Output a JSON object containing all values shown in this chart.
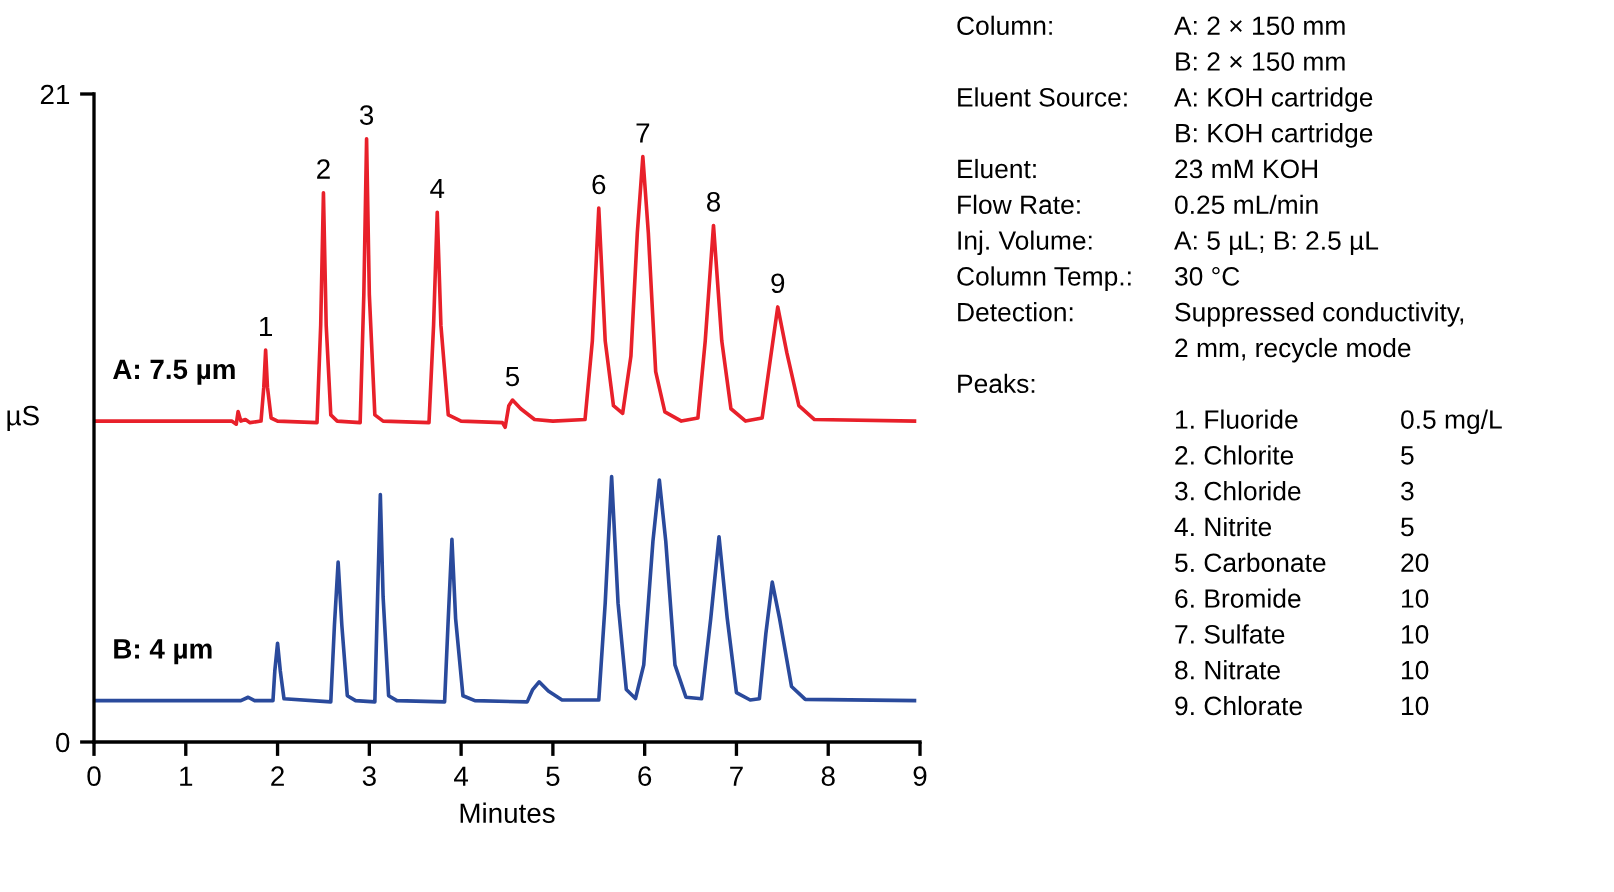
{
  "chart_data": {
    "type": "line",
    "xlabel": "Minutes",
    "ylabel": "µS",
    "xlim": [
      0,
      9
    ],
    "xticks": [
      0,
      1,
      2,
      3,
      4,
      5,
      6,
      7,
      8,
      9
    ],
    "ylim": [
      0,
      21
    ],
    "yticks": [
      0,
      21
    ],
    "grid": false,
    "legend": false,
    "marker": "none",
    "line_style": "solid",
    "series": [
      {
        "name": "A: 7.5 µm",
        "color": "#e8202a",
        "x": [
          0.0,
          1.5,
          1.55,
          1.57,
          1.6,
          1.65,
          1.7,
          1.82,
          1.85,
          1.87,
          1.89,
          1.93,
          2.0,
          2.43,
          2.47,
          2.5,
          2.53,
          2.58,
          2.65,
          2.9,
          2.94,
          2.97,
          3.0,
          3.06,
          3.15,
          3.65,
          3.7,
          3.74,
          3.78,
          3.86,
          4.0,
          4.45,
          4.48,
          4.52,
          4.56,
          4.65,
          4.8,
          5.0,
          5.35,
          5.43,
          5.5,
          5.57,
          5.66,
          5.76,
          5.85,
          5.92,
          5.98,
          6.04,
          6.12,
          6.22,
          6.4,
          6.58,
          6.66,
          6.75,
          6.84,
          6.94,
          7.1,
          7.28,
          7.36,
          7.45,
          7.55,
          7.68,
          7.85,
          8.94
        ],
        "values": [
          10.4,
          10.4,
          10.3,
          10.71,
          10.4,
          10.45,
          10.35,
          10.4,
          11.5,
          12.7,
          11.5,
          10.5,
          10.4,
          10.35,
          13.5,
          17.8,
          13.5,
          10.6,
          10.4,
          10.35,
          14.5,
          19.55,
          14.5,
          10.6,
          10.4,
          10.35,
          13.5,
          17.17,
          13.5,
          10.6,
          10.4,
          10.35,
          10.2,
          10.9,
          11.08,
          10.8,
          10.45,
          10.4,
          10.45,
          13.0,
          17.3,
          13.0,
          10.9,
          10.65,
          12.5,
          16.5,
          18.97,
          16.5,
          12.0,
          10.7,
          10.4,
          10.5,
          13.0,
          16.74,
          13.0,
          10.8,
          10.4,
          10.5,
          12.2,
          14.1,
          12.6,
          10.9,
          10.45,
          10.4
        ]
      },
      {
        "name": "B: 4 µm",
        "color": "#2a4a9c",
        "x": [
          0.0,
          1.6,
          1.68,
          1.75,
          1.95,
          1.97,
          2.0,
          2.03,
          2.07,
          2.58,
          2.62,
          2.66,
          2.7,
          2.76,
          2.85,
          3.06,
          3.09,
          3.12,
          3.15,
          3.21,
          3.3,
          3.82,
          3.86,
          3.9,
          3.94,
          4.02,
          4.15,
          4.72,
          4.78,
          4.85,
          4.95,
          5.1,
          5.5,
          5.57,
          5.64,
          5.71,
          5.8,
          5.9,
          5.99,
          6.09,
          6.16,
          6.23,
          6.33,
          6.45,
          6.62,
          6.72,
          6.81,
          6.9,
          7.0,
          7.15,
          7.25,
          7.32,
          7.39,
          7.47,
          7.6,
          7.75,
          8.94
        ],
        "values": [
          1.34,
          1.34,
          1.45,
          1.34,
          1.34,
          2.3,
          3.2,
          2.3,
          1.4,
          1.3,
          3.8,
          5.83,
          3.8,
          1.5,
          1.34,
          1.3,
          4.7,
          8.02,
          4.7,
          1.5,
          1.34,
          1.3,
          4.0,
          6.57,
          4.0,
          1.5,
          1.34,
          1.3,
          1.7,
          1.95,
          1.65,
          1.36,
          1.36,
          4.5,
          8.6,
          4.5,
          1.7,
          1.41,
          2.5,
          6.5,
          8.49,
          6.5,
          2.5,
          1.45,
          1.4,
          4.0,
          6.65,
          4.0,
          1.6,
          1.36,
          1.4,
          3.5,
          5.18,
          4.0,
          1.8,
          1.38,
          1.34
        ]
      }
    ],
    "annotations": [
      {
        "text": "1",
        "x": 1.87,
        "y": 12.7
      },
      {
        "text": "2",
        "x": 2.5,
        "y": 17.8
      },
      {
        "text": "3",
        "x": 2.97,
        "y": 19.55
      },
      {
        "text": "4",
        "x": 3.74,
        "y": 17.17
      },
      {
        "text": "5",
        "x": 4.56,
        "y": 11.08
      },
      {
        "text": "6",
        "x": 5.5,
        "y": 17.3
      },
      {
        "text": "7",
        "x": 5.98,
        "y": 18.97
      },
      {
        "text": "8",
        "x": 6.75,
        "y": 16.74
      },
      {
        "text": "9",
        "x": 7.45,
        "y": 14.1
      },
      "Column:\tA: 2 × 150 mm",
      "\tB: 2 × 150 mm",
      "Eluent Source:\tA: KOH cartridge",
      "\tB: KOH cartridge",
      "Eluent:\t23 mM KOH",
      "Flow Rate:\t0.25 mL/min",
      "Inj. Volume:\tA: 5 µL; B: 2.5 µL",
      "Column Temp.:\t30 °C",
      "Detection:\tSuppressed conductivity,",
      "\t2 mm, recycle mode",
      "Peaks:",
      "\t1. Fluoride\t0.5 mg/L",
      "\t2. Chlorite\t5",
      "\t3. Chloride\t3",
      "\t4. Nitrite\t5",
      "\t5. Carbonate\t20",
      "\t6. Bromide\t10",
      "\t7. Sulfate\t10",
      "\t8. Nitrate\t10",
      "\t9. Chlorate\t10"
    ]
  }
}
